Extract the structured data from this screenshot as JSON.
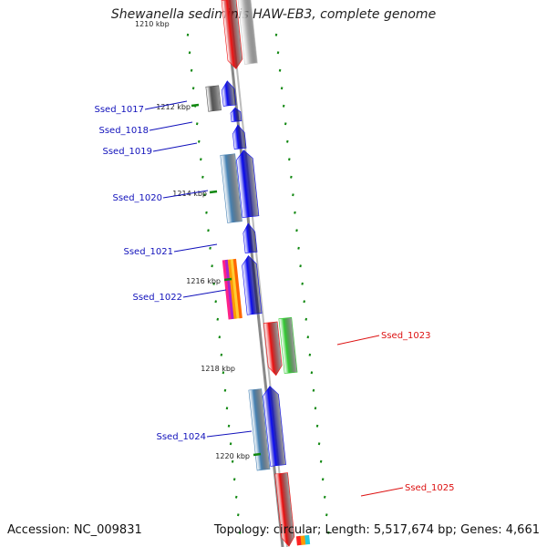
{
  "title": "Shewanella sediminis HAW-EB3, complete genome",
  "top_partial_label": "1210 kbp",
  "footer": {
    "accession": "Accession: NC_009831",
    "topology": "Topology: circular; Length: 5,517,674 bp; Genes: 4,661"
  },
  "kbp_labels": [
    "1212 kbp",
    "1214 kbp",
    "1216 kbp",
    "1218 kbp",
    "1220 kbp"
  ],
  "gene_labels": [
    {
      "name": "Ssed_1017",
      "color": "#1111bb"
    },
    {
      "name": "Ssed_1018",
      "color": "#1111bb"
    },
    {
      "name": "Ssed_1019",
      "color": "#1111bb"
    },
    {
      "name": "Ssed_1020",
      "color": "#1111bb"
    },
    {
      "name": "Ssed_1021",
      "color": "#1111bb"
    },
    {
      "name": "Ssed_1022",
      "color": "#1111bb"
    },
    {
      "name": "Ssed_1023",
      "color": "#dd1111"
    },
    {
      "name": "Ssed_1024",
      "color": "#1111bb"
    },
    {
      "name": "Ssed_1025",
      "color": "#dd1111"
    }
  ],
  "colors": {
    "blue": "#0a0af0",
    "red": "#ee1111",
    "green": "#33cc33",
    "steel": "#4682b4",
    "gray": "#c8c8c8",
    "dark": "#555555",
    "tick": "#118811",
    "backbone": "#888888"
  }
}
